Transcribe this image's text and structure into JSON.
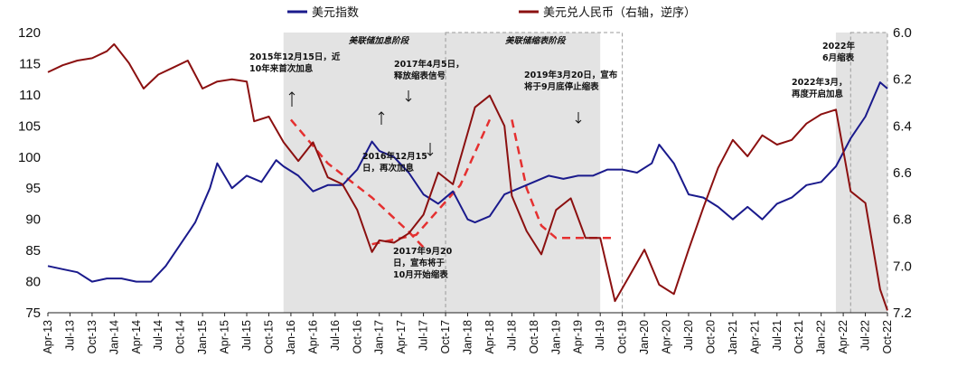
{
  "chart_data": {
    "type": "line",
    "legend": [
      {
        "name": "美元指数",
        "color": "#1a1a8c",
        "axis": "left"
      },
      {
        "name": "美元兑人民币（右轴，逆序）",
        "color": "#8b1010",
        "axis": "right"
      }
    ],
    "legend_position": "top-center",
    "left_axis": {
      "ylim": [
        75,
        120
      ],
      "ticks": [
        "75",
        "80",
        "85",
        "90",
        "95",
        "100",
        "105",
        "110",
        "115",
        "120"
      ]
    },
    "right_axis": {
      "ylim": [
        7.2,
        6.0
      ],
      "reversed": true,
      "ticks": [
        "6.0",
        "6.2",
        "6.4",
        "6.6",
        "6.8",
        "7.0",
        "7.2"
      ]
    },
    "x_ticks": [
      "Apr-13",
      "Jul-13",
      "Oct-13",
      "Jan-14",
      "Apr-14",
      "Jul-14",
      "Oct-14",
      "Jan-15",
      "Apr-15",
      "Jul-15",
      "Oct-15",
      "Jan-16",
      "Apr-16",
      "Jul-16",
      "Oct-16",
      "Jan-17",
      "Apr-17",
      "Jul-17",
      "Oct-17",
      "Jan-18",
      "Apr-18",
      "Jul-18",
      "Oct-18",
      "Jan-19",
      "Apr-19",
      "Jul-19",
      "Oct-19",
      "Jan-20",
      "Apr-20",
      "Jul-20",
      "Oct-20",
      "Jan-21",
      "Apr-21",
      "Jul-21",
      "Oct-21",
      "Jan-22",
      "Apr-22",
      "Jul-22",
      "Oct-22"
    ],
    "x_start": "2013-04",
    "x_end": "2022-10",
    "series": [
      {
        "name": "美元指数",
        "axis": "left",
        "x": [
          "2013-04",
          "2013-06",
          "2013-08",
          "2013-10",
          "2013-12",
          "2014-02",
          "2014-04",
          "2014-06",
          "2014-08",
          "2014-10",
          "2014-12",
          "2015-02",
          "2015-03",
          "2015-05",
          "2015-07",
          "2015-09",
          "2015-11",
          "2015-12",
          "2016-02",
          "2016-04",
          "2016-06",
          "2016-08",
          "2016-10",
          "2016-12",
          "2017-01",
          "2017-03",
          "2017-05",
          "2017-07",
          "2017-09",
          "2017-11",
          "2018-01",
          "2018-02",
          "2018-04",
          "2018-06",
          "2018-08",
          "2018-10",
          "2018-12",
          "2019-02",
          "2019-04",
          "2019-06",
          "2019-08",
          "2019-10",
          "2019-12",
          "2020-02",
          "2020-03",
          "2020-05",
          "2020-07",
          "2020-09",
          "2020-11",
          "2021-01",
          "2021-03",
          "2021-05",
          "2021-07",
          "2021-09",
          "2021-11",
          "2022-01",
          "2022-03",
          "2022-05",
          "2022-07",
          "2022-09",
          "2022-10"
        ],
        "y": [
          82.5,
          82,
          81.5,
          80,
          80.5,
          80.5,
          80,
          80,
          82.5,
          86,
          89.5,
          95,
          99,
          95,
          97,
          96,
          99.5,
          98.5,
          97,
          94.5,
          95.5,
          95.5,
          98,
          102.5,
          101,
          100,
          97.5,
          94,
          92.5,
          94.5,
          90,
          89.5,
          90.5,
          94,
          95,
          96,
          97,
          96.5,
          97,
          97,
          98,
          98,
          97.5,
          99,
          102,
          99,
          94,
          93.5,
          92,
          90,
          92,
          90,
          92.5,
          93.5,
          95.5,
          96,
          98.5,
          103,
          106.5,
          112,
          111
        ]
      },
      {
        "name": "美元兑人民币（右轴，逆序）",
        "axis": "right",
        "x": [
          "2013-04",
          "2013-06",
          "2013-08",
          "2013-10",
          "2013-12",
          "2014-01",
          "2014-03",
          "2014-05",
          "2014-07",
          "2014-09",
          "2014-11",
          "2015-01",
          "2015-03",
          "2015-05",
          "2015-07",
          "2015-08",
          "2015-10",
          "2015-12",
          "2016-02",
          "2016-04",
          "2016-06",
          "2016-08",
          "2016-10",
          "2016-12",
          "2017-01",
          "2017-03",
          "2017-05",
          "2017-07",
          "2017-09",
          "2017-11",
          "2018-01",
          "2018-02",
          "2018-04",
          "2018-06",
          "2018-07",
          "2018-09",
          "2018-11",
          "2019-01",
          "2019-03",
          "2019-05",
          "2019-07",
          "2019-09",
          "2019-11",
          "2020-01",
          "2020-03",
          "2020-05",
          "2020-07",
          "2020-09",
          "2020-11",
          "2021-01",
          "2021-03",
          "2021-05",
          "2021-07",
          "2021-09",
          "2021-11",
          "2022-01",
          "2022-03",
          "2022-05",
          "2022-07",
          "2022-09",
          "2022-10"
        ],
        "y": [
          6.17,
          6.14,
          6.12,
          6.11,
          6.08,
          6.05,
          6.13,
          6.24,
          6.18,
          6.15,
          6.12,
          6.24,
          6.21,
          6.2,
          6.21,
          6.38,
          6.36,
          6.47,
          6.55,
          6.47,
          6.62,
          6.65,
          6.76,
          6.94,
          6.89,
          6.9,
          6.86,
          6.78,
          6.6,
          6.65,
          6.43,
          6.32,
          6.27,
          6.4,
          6.7,
          6.85,
          6.95,
          6.76,
          6.71,
          6.88,
          6.88,
          7.15,
          7.04,
          6.93,
          7.08,
          7.12,
          6.93,
          6.75,
          6.58,
          6.46,
          6.53,
          6.44,
          6.48,
          6.46,
          6.39,
          6.35,
          6.33,
          6.68,
          6.73,
          7.1,
          7.19
        ]
      }
    ],
    "shaded_regions": [
      {
        "label": "美联储加息阶段",
        "from": "2015-12",
        "to": "2019-07",
        "style": "solid"
      },
      {
        "label": "美联储缩表阶段",
        "from": "2017-10",
        "to": "2019-10",
        "style": "dashed"
      },
      {
        "label": "",
        "from": "2022-03",
        "to": "2022-10",
        "style": "solid"
      },
      {
        "label": "",
        "from": "2022-05",
        "to": "2022-10",
        "style": "dashed"
      }
    ],
    "annotations": [
      {
        "text": [
          "2015年12月15日，近",
          "10年来首次加息"
        ],
        "arrow": "up"
      },
      {
        "text": [
          "2017年4月5日，",
          "释放缩表信号"
        ],
        "arrow": "down"
      },
      {
        "text": [
          "2016年12月15",
          "日，再次加息"
        ],
        "arrow": "up"
      },
      {
        "text": [
          "2017年9月20",
          "日，宣布将于",
          "10月开始缩表"
        ],
        "arrow": "none"
      },
      {
        "text": [
          "2019年3月20日，宣布",
          "将于9月底停止缩表"
        ],
        "arrow": "down"
      },
      {
        "text": [
          "2022年3月，",
          "再度开启加息"
        ],
        "arrow": "none"
      },
      {
        "text": [
          "2022年",
          "6月缩表"
        ],
        "arrow": "none"
      }
    ],
    "trend_lines": [
      {
        "style": "dashed",
        "color": "#e53030",
        "x": [
          "2016-01",
          "2016-06",
          "2016-12",
          "2017-05",
          "2017-07"
        ],
        "y_left": [
          106,
          99,
          93.5,
          88,
          85.5
        ]
      },
      {
        "style": "dashed",
        "color": "#e53030",
        "x": [
          "2016-12",
          "2017-06",
          "2017-12",
          "2018-04"
        ],
        "y_left": [
          86,
          87.5,
          95.5,
          106
        ]
      },
      {
        "style": "dashed",
        "color": "#e53030",
        "x": [
          "2018-07",
          "2018-09",
          "2018-11",
          "2019-01",
          "2019-09"
        ],
        "y_left": [
          106,
          95,
          89,
          87,
          87
        ]
      }
    ]
  }
}
